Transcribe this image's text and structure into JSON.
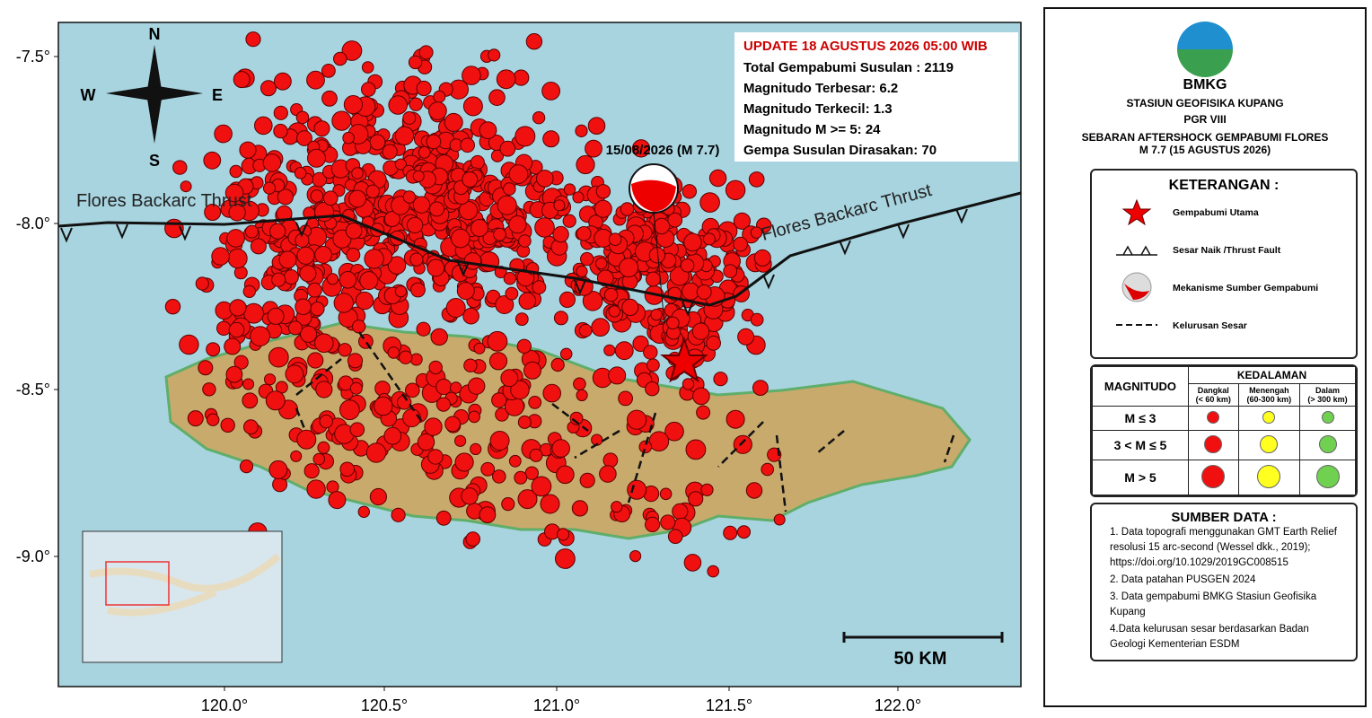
{
  "map": {
    "lat_ticks": [
      "-7.5°",
      "-8.0°",
      "-8.5°",
      "-9.0°"
    ],
    "lon_ticks": [
      "120.0°",
      "120.5°",
      "121.0°",
      "121.5°",
      "122.0°"
    ],
    "compass": {
      "n": "N",
      "s": "S",
      "w": "W",
      "e": "E"
    },
    "fault_labels": [
      "Flores Backarc Thrust",
      "Flores Backarc Thrust"
    ],
    "event_label": "15/08/2026 (M 7.7)",
    "scale": "50 KM",
    "info": {
      "update": "UPDATE 18 AGUSTUS 2026 05:00 WIB",
      "lines": [
        "Total Gempabumi Susulan : 2119",
        "Magnitudo Terbesar: 6.2",
        "Magnitudo Terkecil: 1.3",
        "Magnitudo M >= 5: 24",
        "Gempa Susulan Dirasakan: 70"
      ]
    }
  },
  "panel": {
    "logo": "BMKG",
    "station": "STASIUN GEOFISIKA KUPANG",
    "pgr": "PGR VIII",
    "title": "SEBARAN AFTERSHOCK GEMPABUMI FLORES",
    "subtitle": "M 7.7 (15 AGUSTUS 2026)",
    "legend": {
      "title": "KETERANGAN :",
      "items": [
        "Gempabumi Utama",
        "Sesar Naik /Thrust Fault",
        "Mekanisme Sumber Gempabumi",
        "Kelurusan Sesar"
      ]
    },
    "table": {
      "magnitudo": "MAGNITUDO",
      "kedalaman": "KEDALAMAN",
      "columns": [
        [
          "Dangkal",
          "(< 60 km)"
        ],
        [
          "Menengah",
          "(60-300 km)"
        ],
        [
          "Dalam",
          "(> 300 km)"
        ]
      ],
      "rows": [
        "M ≤ 3",
        "3 < M ≤ 5",
        "M > 5"
      ]
    },
    "sources": {
      "title": "SUMBER DATA :",
      "items": [
        "1. Data topografi menggunakan GMT Earth Relief resolusi 15 arc-second (Wessel dkk., 2019); https://doi.org/10.1029/2019GC008515",
        "2. Data patahan PUSGEN 2024",
        "3. Data gempabumi BMKG Stasiun Geofisika Kupang",
        "4.Data kelurusan sesar berdasarkan Badan Geologi Kementerian ESDM"
      ]
    }
  }
}
